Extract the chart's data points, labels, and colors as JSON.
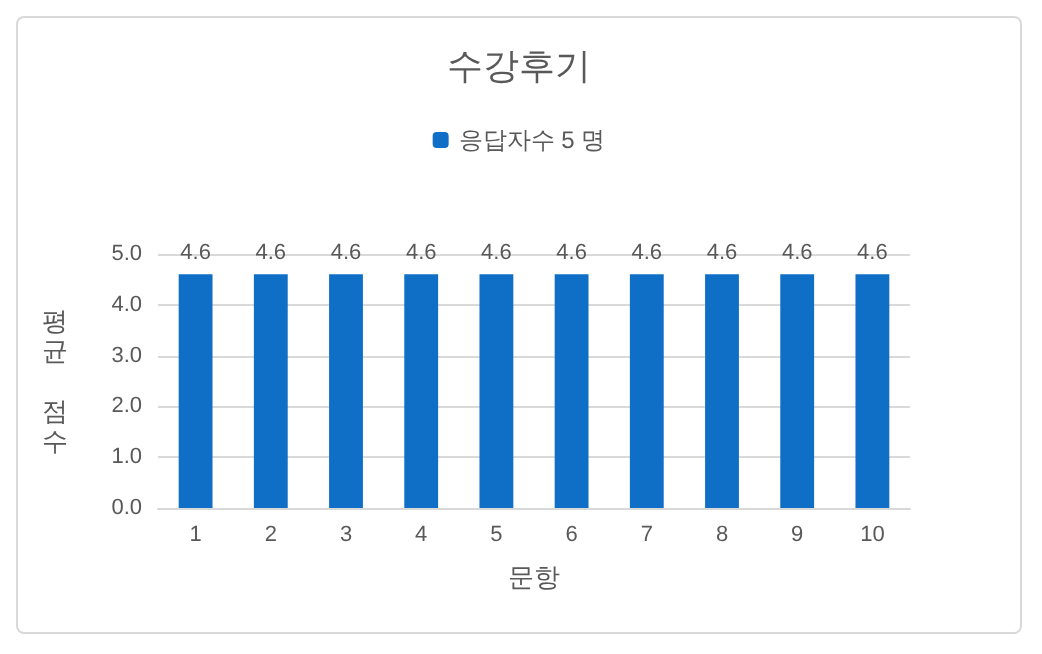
{
  "chart_data": {
    "type": "bar",
    "title": "수강후기",
    "xlabel": "문항",
    "ylabel": "평균 점수",
    "categories": [
      "1",
      "2",
      "3",
      "4",
      "5",
      "6",
      "7",
      "8",
      "9",
      "10"
    ],
    "series": [
      {
        "name": "응답자수 5 명",
        "color": "#0f6fc6",
        "values": [
          4.6,
          4.6,
          4.6,
          4.6,
          4.6,
          4.6,
          4.6,
          4.6,
          4.6,
          4.6
        ]
      }
    ],
    "ylim": [
      0,
      5
    ],
    "yticks": [
      {
        "value": 0,
        "label": "0.0"
      },
      {
        "value": 1,
        "label": "1.0"
      },
      {
        "value": 2,
        "label": "2.0"
      },
      {
        "value": 3,
        "label": "3.0"
      },
      {
        "value": 4,
        "label": "4.0"
      },
      {
        "value": 5,
        "label": "5.0"
      }
    ],
    "grid": "y",
    "legend": "top",
    "data_labels": true
  }
}
